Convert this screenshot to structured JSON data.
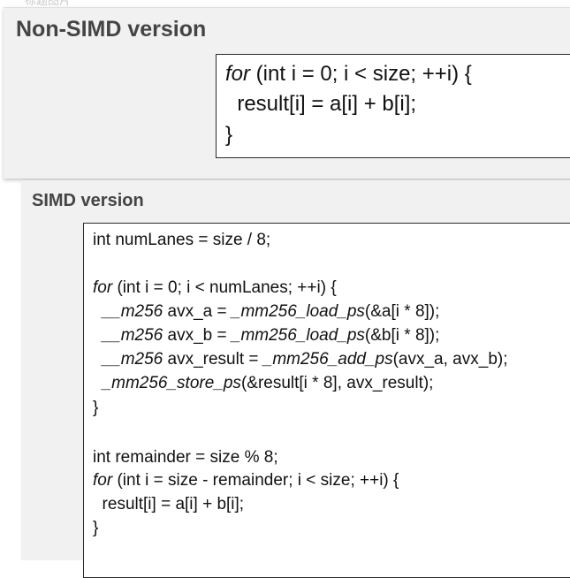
{
  "top_strip": {
    "text": "标题图片"
  },
  "non_simd": {
    "title": "Non-SIMD version",
    "code": {
      "line1_kw": "for",
      "line1_rest": " (int i = 0; i < size; ++i) {",
      "line2": "  result[i] = a[i] + b[i];",
      "line3": "}"
    }
  },
  "simd": {
    "title": "SIMD version",
    "code": {
      "l1": "int numLanes = size / 8;",
      "l2_kw": "for",
      "l2_rest": " (int i = 0; i < numLanes; ++i) {",
      "l3_pre": "  ",
      "l3_type": "__m256",
      "l3_mid": " avx_a = ",
      "l3_fn": "_mm256_load_ps",
      "l3_end": "(&a[i * 8]);",
      "l4_pre": "  ",
      "l4_type": "__m256",
      "l4_mid": " avx_b = ",
      "l4_fn": "_mm256_load_ps",
      "l4_end": "(&b[i * 8]);",
      "l5_pre": "  ",
      "l5_type": "__m256",
      "l5_mid": " avx_result = ",
      "l5_fn": "_mm256_add_ps",
      "l5_end": "(avx_a, avx_b);",
      "l6_pre": "  ",
      "l6_fn": "_mm256_store_ps",
      "l6_end": "(&result[i * 8], avx_result);",
      "l7": "}",
      "l8": "int remainder = size % 8;",
      "l9_kw": "for",
      "l9_rest": " (int i = size - remainder; i < size; ++i) {",
      "l10": "  result[i] = a[i] + b[i];",
      "l11": "}"
    }
  }
}
